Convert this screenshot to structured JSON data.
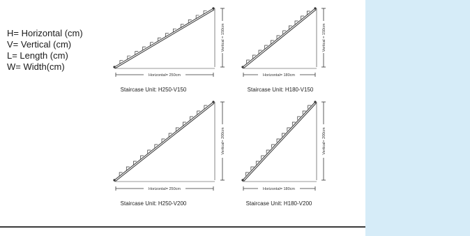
{
  "legend": [
    "H= Horizontal (cm)",
    "V= Vertical (cm)",
    "L= Length (cm)",
    "W= Width(cm)"
  ],
  "units": [
    {
      "caption": "Staircase Unit: H250-V150",
      "horizontal_label": "Horizontal= 250cm",
      "vertical_label": "Vertical = 150cm",
      "horizontal_cm": 250,
      "vertical_cm": 150,
      "steps": 12
    },
    {
      "caption": "Staircase Unit: H180-V150",
      "horizontal_label": "Horizontal= 180cm",
      "vertical_label": "Vertical = 150cm",
      "horizontal_cm": 180,
      "vertical_cm": 150,
      "steps": 11
    },
    {
      "caption": "Staircase Unit: H250-V200",
      "horizontal_label": "Horizontal= 250cm",
      "vertical_label": "Vertical= 200cm",
      "horizontal_cm": 250,
      "vertical_cm": 200,
      "steps": 13
    },
    {
      "caption": "Staircase Unit: H180-V200",
      "horizontal_label": "Horizontal= 180cm",
      "vertical_label": "Vertical= 200cm",
      "horizontal_cm": 180,
      "vertical_cm": 200,
      "steps": 13
    }
  ],
  "colors": {
    "side_panel": "#d6ecf8",
    "line": "#333333"
  }
}
